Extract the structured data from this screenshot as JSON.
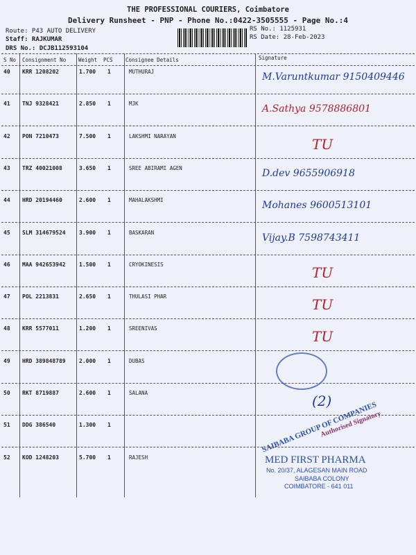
{
  "header": {
    "company": "THE PROFESSIONAL COURIERS, Coimbatore",
    "subtitle": "Delivery Runsheet - PNP - Phone No.:0422-3505555 - Page No.:4",
    "route": "Route: P43 AUTO DELIVERY",
    "staff": "Staff: RAJKUMAR",
    "drs": "DRS No.: DCJB112593104",
    "rs_no": "RS No.: 1125931",
    "rs_date": "RS Date: 28-Feb-2023"
  },
  "columns": [
    "S No",
    "Consignment No",
    "Weight",
    "PCS",
    "Consignee Details",
    "Signature"
  ],
  "rows": [
    {
      "sno": "40",
      "cons": "KRR 1208202",
      "weight": "1.700",
      "pcs": "1",
      "name": "MUTHURAJ",
      "sig": "M.Varuntkumar 9150409446",
      "sigColor": "#1d3a9a"
    },
    {
      "sno": "41",
      "cons": "TNJ 9328421",
      "weight": "2.850",
      "pcs": "1",
      "name": "MJK",
      "sig": "A.Sathya  9578886801",
      "sigColor": "#b0202a"
    },
    {
      "sno": "42",
      "cons": "PON 7210473",
      "weight": "7.500",
      "pcs": "1",
      "name": "LAKSHMI NARAYAN",
      "sig": "TU",
      "sigColor": "#b0202a"
    },
    {
      "sno": "43",
      "cons": "TRZ 40021008",
      "weight": "3.650",
      "pcs": "1",
      "name": "SREE ABIRAMI AGEN",
      "sig": "D.dev  9655906918",
      "sigColor": "#1d3a9a"
    },
    {
      "sno": "44",
      "cons": "HRD 20194460",
      "weight": "2.600",
      "pcs": "1",
      "name": "MAHALAKSHMI",
      "sig": "Mohanes 9600513101",
      "sigColor": "#1d3a9a"
    },
    {
      "sno": "45",
      "cons": "SLM 314679524",
      "weight": "3.900",
      "pcs": "1",
      "name": "BASKARAN",
      "sig": "Vijay.B 7598743411",
      "sigColor": "#1d3a9a"
    },
    {
      "sno": "46",
      "cons": "MAA 942653942",
      "weight": "1.500",
      "pcs": "1",
      "name": "CRYOKINESIS",
      "sig": "TU",
      "sigColor": "#b0202a"
    },
    {
      "sno": "47",
      "cons": "POL 2213831",
      "weight": "2.650",
      "pcs": "1",
      "name": "THULASI PHAR",
      "sig": "TU",
      "sigColor": "#b0202a"
    },
    {
      "sno": "48",
      "cons": "KRR 5577011",
      "weight": "1.200",
      "pcs": "1",
      "name": "SREENIVAS",
      "sig": "TU",
      "sigColor": "#b0202a"
    },
    {
      "sno": "49",
      "cons": "HRD 389848789",
      "weight": "2.000",
      "pcs": "1",
      "name": "DUBAS",
      "sig": "",
      "sigColor": "#1d3a9a"
    },
    {
      "sno": "50",
      "cons": "RKT 8719887",
      "weight": "2.600",
      "pcs": "1",
      "name": "SALANA",
      "sig": "(2)",
      "sigColor": "#1d3a9a"
    },
    {
      "sno": "51",
      "cons": "DDG 386540",
      "weight": "1.300",
      "pcs": "1",
      "name": "",
      "sig": "",
      "sigColor": "#1d3a9a"
    },
    {
      "sno": "52",
      "cons": "KOD 1248203",
      "weight": "5.700",
      "pcs": "1",
      "name": "RAJESH",
      "sig": "",
      "sigColor": "#1d3a9a"
    }
  ],
  "stamps": {
    "group": "SAIBABA GROUP OF COMPANIES",
    "authorised": "Authorised Signatory",
    "pharma_name": "MED FIRST PHARMA",
    "pharma_addr1": "No. 20/37, ALAGESAN MAIN ROAD",
    "pharma_addr2": "SAIBABA COLONY",
    "pharma_addr3": "COIMBATORE - 641 011"
  }
}
